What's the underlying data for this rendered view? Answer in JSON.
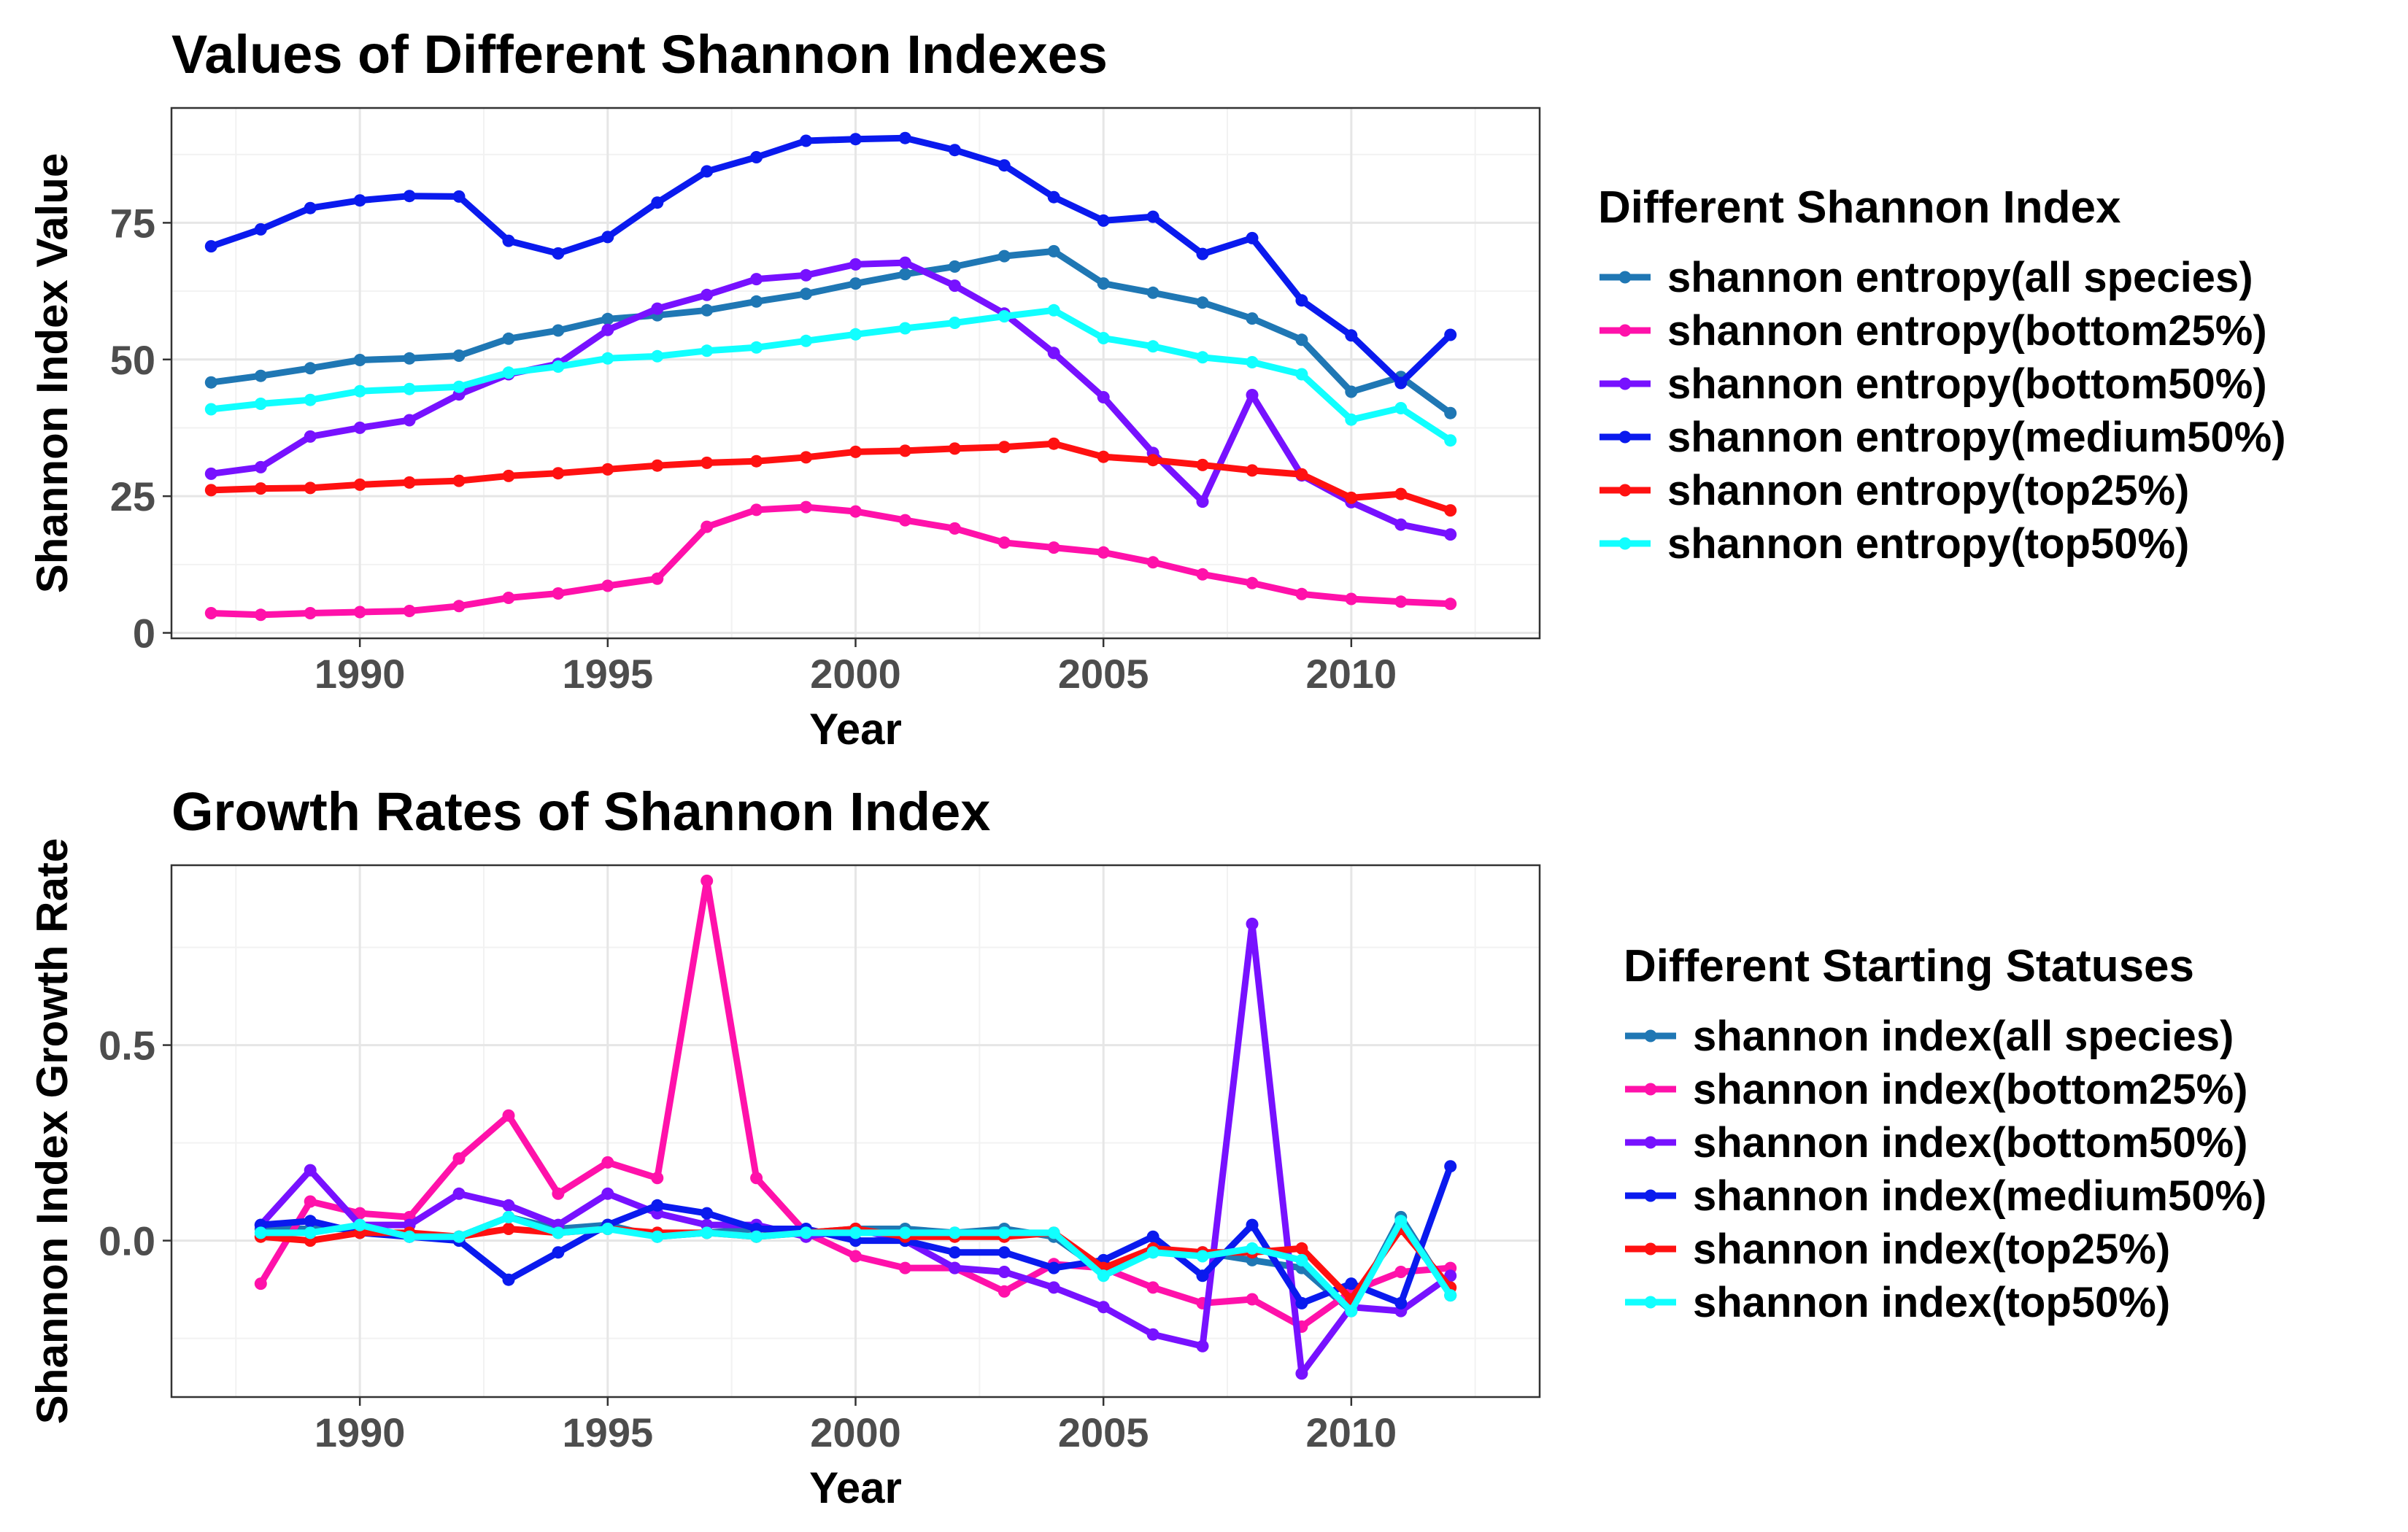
{
  "chart_data": [
    {
      "type": "line",
      "title": "Values of Different Shannon Indexes",
      "xlabel": "Year",
      "ylabel": "Shannon Index Value",
      "xlim": [
        1986.2,
        2013.8
      ],
      "ylim": [
        -1,
        96
      ],
      "x_ticks": [
        1990,
        1995,
        2000,
        2005,
        2010
      ],
      "y_ticks": [
        0,
        25,
        50,
        75
      ],
      "x_tick_labels": [
        "1990",
        "1995",
        "2000",
        "2005",
        "2010"
      ],
      "y_tick_labels": [
        "0",
        "25",
        "50",
        "75"
      ],
      "grid": true,
      "legend_title": "Different Shannon Index",
      "legend_position": "right",
      "x": [
        1987,
        1988,
        1989,
        1990,
        1991,
        1992,
        1993,
        1994,
        1995,
        1996,
        1997,
        1998,
        1999,
        2000,
        2001,
        2002,
        2003,
        2004,
        2005,
        2006,
        2007,
        2008,
        2009,
        2010,
        2011,
        2012
      ],
      "series": [
        {
          "name": "shannon entropy(all species)",
          "color": "#1f77b4",
          "values": [
            45.8,
            47,
            48.4,
            49.9,
            50.2,
            50.7,
            53.8,
            55.3,
            57.4,
            58.1,
            59.0,
            60.6,
            62.0,
            63.9,
            65.6,
            67.0,
            68.9,
            69.8,
            63.9,
            62.2,
            60.4,
            57.5,
            53.6,
            44.1,
            46.8,
            40.2
          ]
        },
        {
          "name": "shannon entropy(bottom25%)",
          "color": "#ff11aa",
          "values": [
            3.6,
            3.3,
            3.6,
            3.8,
            4.0,
            4.9,
            6.4,
            7.2,
            8.6,
            9.9,
            19.4,
            22.5,
            23.0,
            22.2,
            20.6,
            19.1,
            16.5,
            15.6,
            14.7,
            12.9,
            10.7,
            9.1,
            7.1,
            6.2,
            5.7,
            5.3
          ]
        },
        {
          "name": "shannon entropy(bottom50%)",
          "color": "#7711ff",
          "values": [
            29.1,
            30.3,
            35.9,
            37.5,
            38.9,
            43.6,
            47.3,
            49.2,
            55.4,
            59.3,
            61.8,
            64.7,
            65.4,
            67.4,
            67.7,
            63.5,
            58.4,
            51.2,
            43.1,
            32.9,
            24.0,
            43.5,
            28.8,
            23.9,
            19.8,
            18.0
          ]
        },
        {
          "name": "shannon entropy(medium50%)",
          "color": "#0a1aee",
          "values": [
            70.7,
            73.8,
            77.7,
            79.1,
            79.9,
            79.8,
            71.7,
            69.4,
            72.4,
            78.7,
            84.4,
            87.0,
            90.0,
            90.3,
            90.5,
            88.3,
            85.5,
            79.7,
            75.4,
            76.1,
            69.3,
            72.2,
            60.8,
            54.4,
            45.7,
            54.5
          ]
        },
        {
          "name": "shannon entropy(top25%)",
          "color": "#ff1111",
          "values": [
            26.1,
            26.4,
            26.5,
            27.1,
            27.5,
            27.8,
            28.7,
            29.2,
            29.9,
            30.6,
            31.1,
            31.4,
            32.1,
            33.1,
            33.3,
            33.7,
            34.0,
            34.6,
            32.2,
            31.6,
            30.7,
            29.7,
            29.0,
            24.7,
            25.4,
            22.4
          ]
        },
        {
          "name": "shannon entropy(top50%)",
          "color": "#11ffff",
          "values": [
            40.9,
            41.9,
            42.6,
            44.2,
            44.6,
            45.0,
            47.6,
            48.7,
            50.2,
            50.6,
            51.6,
            52.2,
            53.4,
            54.6,
            55.7,
            56.7,
            57.9,
            59.0,
            53.9,
            52.4,
            50.4,
            49.5,
            47.3,
            39.0,
            41.1,
            35.2
          ]
        }
      ]
    },
    {
      "type": "line",
      "title": "Growth Rates of Shannon Index",
      "xlabel": "Year",
      "ylabel": "Shannon Index Growth Rate",
      "xlim": [
        1986.2,
        2013.8
      ],
      "ylim": [
        -0.4,
        0.96
      ],
      "x_ticks": [
        1990,
        1995,
        2000,
        2005,
        2010
      ],
      "y_ticks": [
        0.0,
        0.5
      ],
      "x_tick_labels": [
        "1990",
        "1995",
        "2000",
        "2005",
        "2010"
      ],
      "y_tick_labels": [
        "0.0",
        "0.5"
      ],
      "grid": true,
      "legend_title": "Different Starting Statuses",
      "legend_position": "right",
      "x": [
        1988,
        1989,
        1990,
        1991,
        1992,
        1993,
        1994,
        1995,
        1996,
        1997,
        1998,
        1999,
        2000,
        2001,
        2002,
        2003,
        2004,
        2005,
        2006,
        2007,
        2008,
        2009,
        2010,
        2011,
        2012
      ],
      "series": [
        {
          "name": "shannon index(all species)",
          "color": "#1f77b4",
          "values": [
            0.03,
            0.03,
            0.03,
            0.01,
            0.01,
            0.06,
            0.03,
            0.04,
            0.01,
            0.02,
            0.03,
            0.02,
            0.03,
            0.03,
            0.02,
            0.03,
            0.01,
            -0.08,
            -0.03,
            -0.03,
            -0.05,
            -0.07,
            -0.18,
            0.06,
            -0.14
          ]
        },
        {
          "name": "shannon index(bottom25%)",
          "color": "#ff11aa",
          "values": [
            -0.11,
            0.1,
            0.07,
            0.06,
            0.21,
            0.32,
            0.12,
            0.2,
            0.16,
            0.92,
            0.16,
            0.02,
            -0.04,
            -0.07,
            -0.07,
            -0.13,
            -0.06,
            -0.07,
            -0.12,
            -0.16,
            -0.15,
            -0.22,
            -0.13,
            -0.08,
            -0.07
          ]
        },
        {
          "name": "shannon index(bottom50%)",
          "color": "#7711ff",
          "values": [
            0.04,
            0.18,
            0.04,
            0.04,
            0.12,
            0.09,
            0.04,
            0.12,
            0.07,
            0.04,
            0.04,
            0.01,
            0.03,
            0.0,
            -0.07,
            -0.08,
            -0.12,
            -0.17,
            -0.24,
            -0.27,
            0.81,
            -0.34,
            -0.17,
            -0.18,
            -0.09
          ]
        },
        {
          "name": "shannon index(medium50%)",
          "color": "#0a1aee",
          "values": [
            0.04,
            0.05,
            0.02,
            0.01,
            0.0,
            -0.1,
            -0.03,
            0.04,
            0.09,
            0.07,
            0.03,
            0.03,
            0.0,
            0.0,
            -0.03,
            -0.03,
            -0.07,
            -0.05,
            0.01,
            -0.09,
            0.04,
            -0.16,
            -0.11,
            -0.16,
            0.19
          ]
        },
        {
          "name": "shannon index(top25%)",
          "color": "#ff1111",
          "values": [
            0.01,
            0.0,
            0.02,
            0.02,
            0.01,
            0.03,
            0.02,
            0.03,
            0.02,
            0.02,
            0.01,
            0.02,
            0.03,
            0.01,
            0.01,
            0.01,
            0.02,
            -0.07,
            -0.02,
            -0.03,
            -0.03,
            -0.02,
            -0.15,
            0.03,
            -0.12
          ]
        },
        {
          "name": "shannon index(top50%)",
          "color": "#11ffff",
          "values": [
            0.02,
            0.02,
            0.04,
            0.01,
            0.01,
            0.06,
            0.02,
            0.03,
            0.01,
            0.02,
            0.01,
            0.02,
            0.02,
            0.02,
            0.02,
            0.02,
            0.02,
            -0.09,
            -0.03,
            -0.04,
            -0.02,
            -0.05,
            -0.18,
            0.05,
            -0.14
          ]
        }
      ]
    }
  ]
}
